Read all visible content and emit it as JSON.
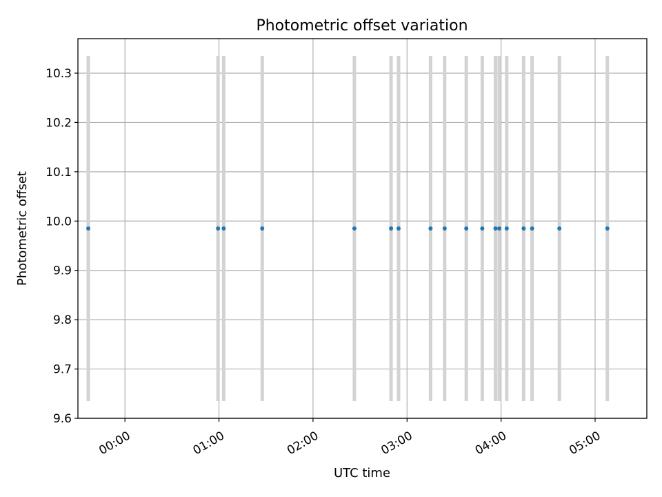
{
  "chart_data": {
    "type": "scatter",
    "title": "Photometric offset variation",
    "xlabel": "UTC time",
    "ylabel": "Photometric offset",
    "x_unit": "hours UTC",
    "xlim": [
      -0.5,
      5.55
    ],
    "ylim": [
      9.6,
      10.37
    ],
    "x_ticks": [
      {
        "value": 0,
        "label": "00:00"
      },
      {
        "value": 1,
        "label": "01:00"
      },
      {
        "value": 2,
        "label": "02:00"
      },
      {
        "value": 3,
        "label": "03:00"
      },
      {
        "value": 4,
        "label": "04:00"
      },
      {
        "value": 5,
        "label": "05:00"
      }
    ],
    "y_ticks": [
      {
        "value": 9.6,
        "label": "9.6"
      },
      {
        "value": 9.7,
        "label": "9.7"
      },
      {
        "value": 9.8,
        "label": "9.8"
      },
      {
        "value": 9.9,
        "label": "9.9"
      },
      {
        "value": 10.0,
        "label": "10.0"
      },
      {
        "value": 10.1,
        "label": "10.1"
      },
      {
        "value": 10.2,
        "label": "10.2"
      },
      {
        "value": 10.3,
        "label": "10.3"
      }
    ],
    "grid": true,
    "marker_color": "#1f77b4",
    "errorbar_color": "#d3d3d3",
    "points": [
      {
        "x": -0.39,
        "y": 9.985,
        "err_low": 9.635,
        "err_high": 10.335
      },
      {
        "x": 0.99,
        "y": 9.985,
        "err_low": 9.635,
        "err_high": 10.335
      },
      {
        "x": 1.05,
        "y": 9.985,
        "err_low": 9.635,
        "err_high": 10.335
      },
      {
        "x": 1.46,
        "y": 9.985,
        "err_low": 9.635,
        "err_high": 10.335
      },
      {
        "x": 2.44,
        "y": 9.985,
        "err_low": 9.635,
        "err_high": 10.335
      },
      {
        "x": 2.83,
        "y": 9.985,
        "err_low": 9.635,
        "err_high": 10.335
      },
      {
        "x": 2.91,
        "y": 9.985,
        "err_low": 9.635,
        "err_high": 10.335
      },
      {
        "x": 3.25,
        "y": 9.985,
        "err_low": 9.635,
        "err_high": 10.335
      },
      {
        "x": 3.4,
        "y": 9.985,
        "err_low": 9.635,
        "err_high": 10.335
      },
      {
        "x": 3.63,
        "y": 9.985,
        "err_low": 9.635,
        "err_high": 10.335
      },
      {
        "x": 3.8,
        "y": 9.985,
        "err_low": 9.635,
        "err_high": 10.335
      },
      {
        "x": 3.94,
        "y": 9.985,
        "err_low": 9.635,
        "err_high": 10.335
      },
      {
        "x": 3.98,
        "y": 9.985,
        "err_low": 9.635,
        "err_high": 10.335
      },
      {
        "x": 4.06,
        "y": 9.985,
        "err_low": 9.635,
        "err_high": 10.335
      },
      {
        "x": 4.24,
        "y": 9.985,
        "err_low": 9.635,
        "err_high": 10.335
      },
      {
        "x": 4.33,
        "y": 9.985,
        "err_low": 9.635,
        "err_high": 10.335
      },
      {
        "x": 4.62,
        "y": 9.985,
        "err_low": 9.635,
        "err_high": 10.335
      },
      {
        "x": 5.13,
        "y": 9.985,
        "err_low": 9.635,
        "err_high": 10.335
      }
    ]
  }
}
